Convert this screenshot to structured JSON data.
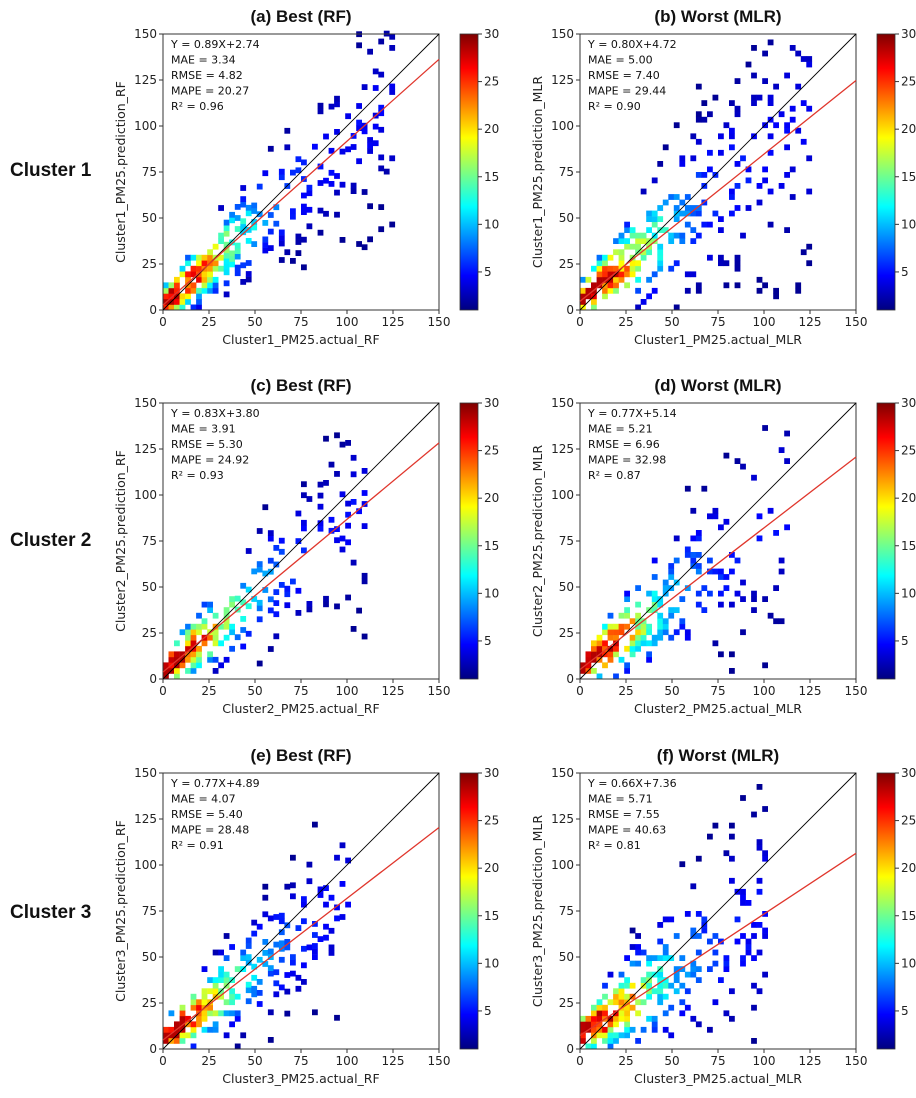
{
  "row_labels": [
    "Cluster 1",
    "Cluster 2",
    "Cluster 3"
  ],
  "colorbar": {
    "ticks": [
      5,
      10,
      15,
      20,
      25,
      30
    ],
    "range": [
      1,
      30
    ],
    "colormap": "jet"
  },
  "chart_data": [
    {
      "type": "heatmap",
      "title": "(a) Best (RF)",
      "xlabel": "Cluster1_PM25.actual_RF",
      "ylabel": "Cluster1_PM25.prediction_RF",
      "xlim": [
        0,
        150
      ],
      "ylim": [
        0,
        150
      ],
      "ticks": [
        0,
        25,
        50,
        75,
        100,
        125,
        150
      ],
      "fit": {
        "slope": 0.89,
        "intercept": 2.74
      },
      "stats": [
        "Y = 0.89X+2.74",
        "MAE = 3.34",
        "RMSE = 4.82",
        "MAPE = 20.27",
        "R² = 0.96"
      ],
      "density": {
        "spread": 0.18,
        "max_x": 125,
        "bias_up": 0.0
      }
    },
    {
      "type": "heatmap",
      "title": "(b) Worst (MLR)",
      "xlabel": "Cluster1_PM25.actual_MLR",
      "ylabel": "Cluster1_PM25.prediction_MLR",
      "xlim": [
        0,
        150
      ],
      "ylim": [
        0,
        150
      ],
      "ticks": [
        0,
        25,
        50,
        75,
        100,
        125,
        150
      ],
      "fit": {
        "slope": 0.8,
        "intercept": 4.72
      },
      "stats": [
        "Y = 0.80X+4.72",
        "MAE = 5.00",
        "RMSE = 7.40",
        "MAPE = 29.44",
        "R² = 0.90"
      ],
      "density": {
        "spread": 0.28,
        "max_x": 125,
        "bias_up": 0.08
      }
    },
    {
      "type": "heatmap",
      "title": "(c) Best (RF)",
      "xlabel": "Cluster2_PM25.actual_RF",
      "ylabel": "Cluster2_PM25.prediction_RF",
      "xlim": [
        0,
        150
      ],
      "ylim": [
        0,
        150
      ],
      "ticks": [
        0,
        25,
        50,
        75,
        100,
        125,
        150
      ],
      "fit": {
        "slope": 0.83,
        "intercept": 3.8
      },
      "stats": [
        "Y = 0.83X+3.80",
        "MAE = 3.91",
        "RMSE = 5.30",
        "MAPE = 24.92",
        "R² = 0.93"
      ],
      "density": {
        "spread": 0.2,
        "max_x": 110,
        "bias_up": 0.0
      }
    },
    {
      "type": "heatmap",
      "title": "(d) Worst (MLR)",
      "xlabel": "Cluster2_PM25.actual_MLR",
      "ylabel": "Cluster2_PM25.prediction_MLR",
      "xlim": [
        0,
        150
      ],
      "ylim": [
        0,
        150
      ],
      "ticks": [
        0,
        25,
        50,
        75,
        100,
        125,
        150
      ],
      "fit": {
        "slope": 0.77,
        "intercept": 5.14
      },
      "stats": [
        "Y = 0.77X+5.14",
        "MAE = 5.21",
        "RMSE = 6.96",
        "MAPE = 32.98",
        "R² = 0.87"
      ],
      "density": {
        "spread": 0.26,
        "max_x": 112,
        "bias_up": 0.05
      }
    },
    {
      "type": "heatmap",
      "title": "(e) Best (RF)",
      "xlabel": "Cluster3_PM25.actual_RF",
      "ylabel": "Cluster3_PM25.prediction_RF",
      "xlim": [
        0,
        150
      ],
      "ylim": [
        0,
        150
      ],
      "ticks": [
        0,
        25,
        50,
        75,
        100,
        125,
        150
      ],
      "fit": {
        "slope": 0.77,
        "intercept": 4.89
      },
      "stats": [
        "Y = 0.77X+4.89",
        "MAE = 4.07",
        "RMSE = 5.40",
        "MAPE = 28.48",
        "R² = 0.91"
      ],
      "density": {
        "spread": 0.2,
        "max_x": 102,
        "bias_up": 0.0
      }
    },
    {
      "type": "heatmap",
      "title": "(f) Worst (MLR)",
      "xlabel": "Cluster3_PM25.actual_MLR",
      "ylabel": "Cluster3_PM25.prediction_MLR",
      "xlim": [
        0,
        150
      ],
      "ylim": [
        0,
        150
      ],
      "ticks": [
        0,
        25,
        50,
        75,
        100,
        125,
        150
      ],
      "fit": {
        "slope": 0.66,
        "intercept": 7.36
      },
      "stats": [
        "Y = 0.66X+7.36",
        "MAE = 5.71",
        "RMSE = 7.55",
        "MAPE = 40.63",
        "R² = 0.81"
      ],
      "density": {
        "spread": 0.3,
        "max_x": 102,
        "bias_up": 0.06
      }
    }
  ]
}
